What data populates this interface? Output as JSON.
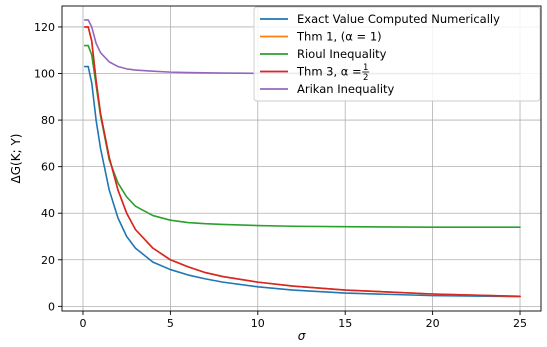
{
  "chart_data": {
    "type": "line",
    "xlabel": "σ",
    "ylabel": "ΔG(K; Y)",
    "xlim": [
      -1.2,
      26.2
    ],
    "ylim": [
      -2,
      129
    ],
    "xticks": [
      0,
      5,
      10,
      15,
      20,
      25
    ],
    "yticks": [
      0,
      20,
      40,
      60,
      80,
      100,
      120
    ],
    "grid": true,
    "legend_position": "top-right",
    "series": [
      {
        "name": "Exact Value Computed Numerically",
        "color": "#1f77b4",
        "x": [
          0.1,
          0.3,
          0.5,
          0.75,
          1,
          1.5,
          2,
          2.5,
          3,
          4,
          5,
          6,
          7,
          8,
          10,
          12,
          15,
          20,
          25
        ],
        "y": [
          103,
          103,
          96,
          80,
          68,
          50,
          38,
          30,
          25,
          19,
          15.8,
          13.5,
          11.8,
          10.4,
          8.4,
          7,
          5.7,
          4.6,
          4.2
        ]
      },
      {
        "name": "Thm 1, (α = 1)",
        "color": "#ff7f0e",
        "x": [
          0.1,
          0.3,
          0.5,
          0.75,
          1,
          1.5,
          2,
          2.5,
          3,
          4,
          5,
          6,
          7,
          8,
          10,
          12,
          15,
          20,
          25
        ],
        "y": [
          120,
          120,
          114,
          97,
          83,
          64,
          50,
          40,
          33,
          25,
          20,
          17,
          14.5,
          12.8,
          10.4,
          8.7,
          7,
          5.3,
          4.3
        ]
      },
      {
        "name": "Rioul Inequality",
        "color": "#2ca02c",
        "x": [
          0.1,
          0.3,
          0.5,
          0.75,
          1,
          1.5,
          2,
          2.5,
          3,
          4,
          5,
          6,
          7,
          8,
          10,
          12,
          15,
          20,
          25
        ],
        "y": [
          112,
          112,
          108,
          95,
          82,
          63,
          53,
          47,
          43,
          39,
          37,
          36,
          35.5,
          35.2,
          34.7,
          34.4,
          34.2,
          34,
          34
        ]
      },
      {
        "name": "Thm 3, α = 1/2",
        "color": "#d62728",
        "x": [
          0.1,
          0.3,
          0.5,
          0.75,
          1,
          1.5,
          2,
          2.5,
          3,
          4,
          5,
          6,
          7,
          8,
          10,
          12,
          15,
          20,
          25
        ],
        "y": [
          120,
          120,
          114,
          97,
          83,
          64,
          50,
          40,
          33,
          25,
          20,
          17,
          14.5,
          12.8,
          10.4,
          8.7,
          7,
          5.3,
          4.3
        ]
      },
      {
        "name": "Arikan Inequality",
        "color": "#9467bd",
        "x": [
          0.1,
          0.3,
          0.5,
          0.75,
          1,
          1.5,
          2,
          2.5,
          3,
          4,
          5,
          6,
          7,
          8,
          10,
          12,
          15,
          20,
          25
        ],
        "y": [
          123,
          123,
          120,
          113,
          109,
          105,
          103,
          102,
          101.5,
          101,
          100.6,
          100.4,
          100.3,
          100.2,
          100.1,
          100.1,
          100,
          100,
          100
        ]
      }
    ]
  },
  "legend": {
    "labels": [
      "Exact Value Computed Numerically",
      "Thm 1, (α = 1)",
      "Rioul Inequality",
      "Thm 3, α = ",
      "Arikan Inequality"
    ],
    "frac_num": "1",
    "frac_den": "2"
  }
}
